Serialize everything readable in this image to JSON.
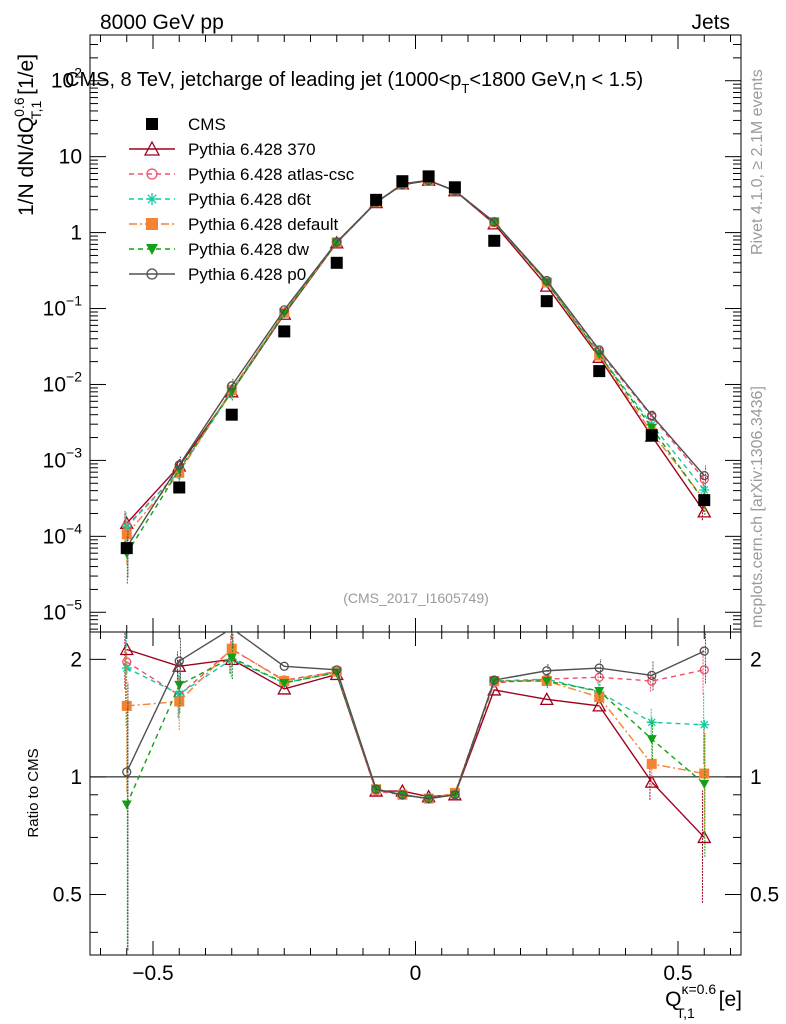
{
  "header": {
    "beam": "8000 GeV pp",
    "process": "Jets",
    "plot_title": "CMS, 8 TeV, jetcharge of leading jet (1000<p",
    "plot_title_sub": "T",
    "plot_title_end": "<1800 GeV,η < 1.5)",
    "side_version": "Rivet 4.1.0, ≥ 2.1M events",
    "side_site": "mcplots.cern.ch [arXiv:1306.3436]",
    "analysis_tag": "(CMS_2017_I1605749)"
  },
  "axes": {
    "y_main_label": "1/N dN/dQ",
    "y_main_sup": "0.6",
    "y_main_sub": "T,1",
    "y_main_unit": " [1/e]",
    "y_ratio_label": "Ratio to CMS",
    "x_label": "Q",
    "x_sup": "κ=0.6",
    "x_sub": "T,1",
    "x_unit": " [e]",
    "x_ticks": [
      "−0.5",
      "0",
      "0.5"
    ],
    "y_main_ticks": [
      {
        "base": "10",
        "exp": "−5",
        "val": 1e-05
      },
      {
        "base": "10",
        "exp": "−4",
        "val": 0.0001
      },
      {
        "base": "10",
        "exp": "−3",
        "val": 0.001
      },
      {
        "base": "10",
        "exp": "−2",
        "val": 0.01
      },
      {
        "base": "10",
        "exp": "−1",
        "val": 0.1
      },
      {
        "base": "1",
        "exp": "",
        "val": 1
      },
      {
        "base": "10",
        "exp": "",
        "val": 10
      },
      {
        "base": "10",
        "exp": "2",
        "val": 100
      }
    ],
    "y_ratio_ticks": [
      {
        "label": "0.5",
        "val": 0.5
      },
      {
        "label": "1",
        "val": 1
      },
      {
        "label": "2",
        "val": 2
      }
    ]
  },
  "chart_data": {
    "type": "line",
    "x_range": [
      -0.62,
      0.62
    ],
    "y_main_range_log": [
      5.5e-06,
      400
    ],
    "y_ratio_range_log": [
      0.35,
      2.35
    ],
    "x": [
      -0.55,
      -0.45,
      -0.35,
      -0.25,
      -0.15,
      -0.075,
      -0.025,
      0.025,
      0.075,
      0.15,
      0.25,
      0.35,
      0.45,
      0.55
    ],
    "cms": [
      7e-05,
      0.00044,
      0.004,
      0.05,
      0.4,
      2.7,
      4.75,
      5.5,
      3.95,
      0.78,
      0.125,
      0.015,
      0.00215,
      0.0003
    ],
    "series": [
      {
        "name": "CMS",
        "color": "#000000",
        "marker": "square-filled",
        "dash": "",
        "is_data": true
      },
      {
        "name": "Pythia 6.428 370",
        "color": "#a0001e",
        "marker": "triangle-open",
        "dash": "",
        "ratio": [
          2.12,
          1.92,
          2.0,
          1.68,
          1.83,
          0.92,
          0.92,
          0.89,
          0.9,
          1.67,
          1.58,
          1.52,
          0.97,
          0.7
        ]
      },
      {
        "name": "Pythia 6.428 atlas-csc",
        "color": "#f0506e",
        "marker": "circle-open",
        "dash": "5,4",
        "ratio": [
          1.97,
          1.62,
          2.12,
          1.77,
          1.86,
          0.92,
          0.9,
          0.88,
          0.9,
          1.74,
          1.78,
          1.8,
          1.76,
          1.88
        ]
      },
      {
        "name": "Pythia 6.428 d6t",
        "color": "#16c8a0",
        "marker": "asterisk",
        "dash": "5,4",
        "ratio": [
          1.9,
          1.63,
          2.0,
          1.74,
          1.85,
          0.93,
          0.9,
          0.88,
          0.9,
          1.76,
          1.78,
          1.65,
          1.38,
          1.36
        ]
      },
      {
        "name": "Pythia 6.428 default",
        "color": "#f58232",
        "marker": "square-filled",
        "dash": "8,3,2,3",
        "ratio": [
          1.52,
          1.56,
          2.13,
          1.76,
          1.86,
          0.93,
          0.9,
          0.88,
          0.91,
          1.76,
          1.76,
          1.6,
          1.08,
          1.02
        ]
      },
      {
        "name": "Pythia 6.428 dw",
        "color": "#14a014",
        "marker": "triangle-down-filled",
        "dash": "5,4",
        "ratio": [
          0.85,
          1.72,
          2.02,
          1.74,
          1.85,
          0.93,
          0.9,
          0.88,
          0.9,
          1.76,
          1.76,
          1.66,
          1.25,
          0.96
        ]
      },
      {
        "name": "Pythia 6.428 p0",
        "color": "#505050",
        "marker": "circle-open",
        "dash": "",
        "ratio": [
          1.03,
          1.98,
          2.4,
          1.92,
          1.88,
          0.93,
          0.9,
          0.88,
          0.9,
          1.77,
          1.87,
          1.9,
          1.82,
          2.1
        ]
      }
    ],
    "ratio_err_p370": [
      0.55,
      0.22,
      0.2,
      0.05,
      0.04,
      0.02,
      0.02,
      0.02,
      0.02,
      0.04,
      0.06,
      0.08,
      0.12,
      0.28
    ],
    "ratio_err_cms": [
      0.5,
      0.2,
      0.18,
      0.04,
      0.03,
      0.015,
      0.015,
      0.015,
      0.015,
      0.03,
      0.05,
      0.06,
      0.1,
      0.25
    ]
  }
}
